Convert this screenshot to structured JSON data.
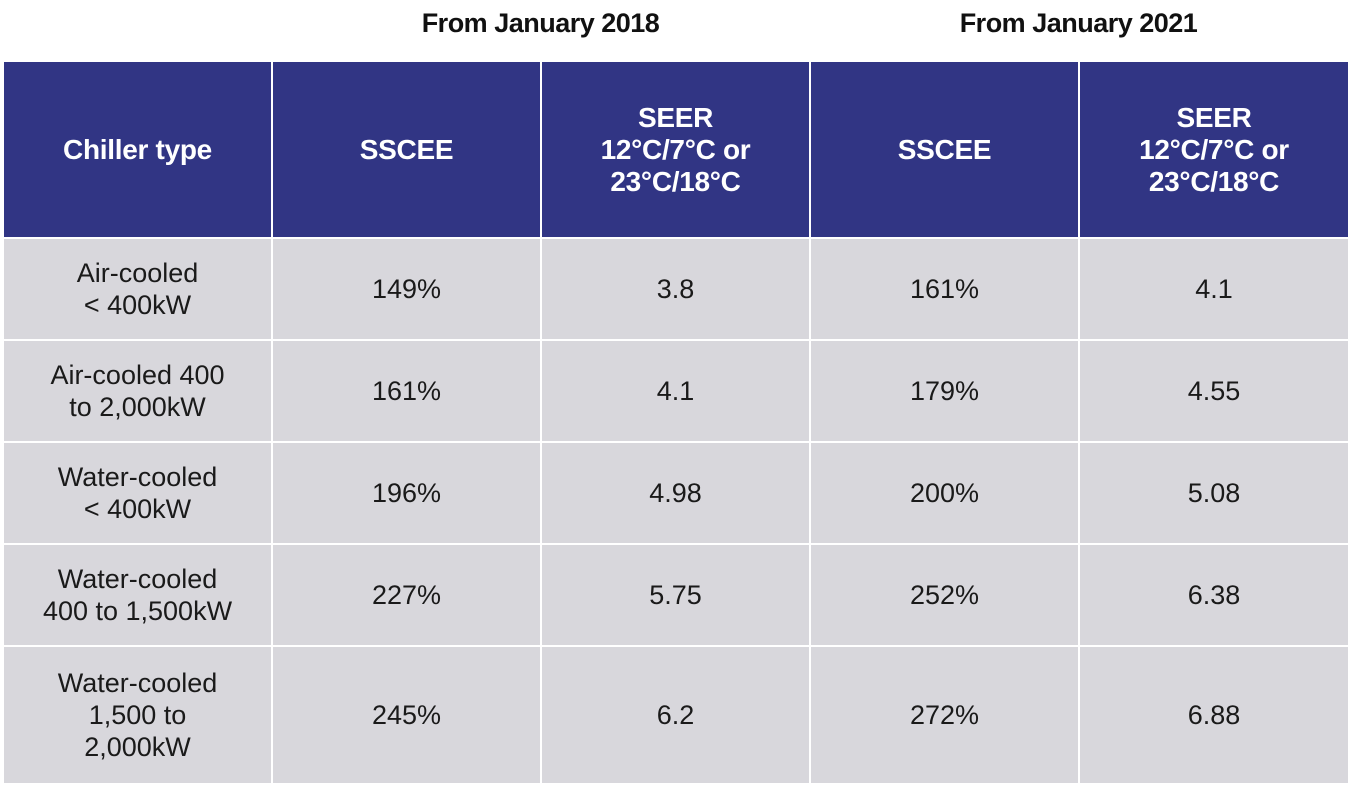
{
  "periods": [
    "From January 2018",
    "From January 2021"
  ],
  "headers": {
    "chiller_type": "Chiller type",
    "sscee": "SSCEE",
    "seer": [
      "SEER",
      "12°C/7°C or",
      "23°C/18°C"
    ]
  },
  "rows": [
    {
      "type": [
        "Air-cooled",
        "< 400kW"
      ],
      "sscee_2018": "149%",
      "seer_2018": "3.8",
      "sscee_2021": "161%",
      "seer_2021": "4.1"
    },
    {
      "type": [
        "Air-cooled 400",
        "to 2,000kW"
      ],
      "sscee_2018": "161%",
      "seer_2018": "4.1",
      "sscee_2021": "179%",
      "seer_2021": "4.55"
    },
    {
      "type": [
        "Water-cooled",
        "< 400kW"
      ],
      "sscee_2018": "196%",
      "seer_2018": "4.98",
      "sscee_2021": "200%",
      "seer_2021": "5.08"
    },
    {
      "type": [
        "Water-cooled",
        "400 to 1,500kW"
      ],
      "sscee_2018": "227%",
      "seer_2018": "5.75",
      "sscee_2021": "252%",
      "seer_2021": "6.38"
    },
    {
      "type": [
        "Water-cooled",
        "1,500 to",
        "2,000kW"
      ],
      "sscee_2018": "245%",
      "seer_2018": "6.2",
      "sscee_2021": "272%",
      "seer_2021": "6.88"
    }
  ],
  "colors": {
    "header_bg": "#313584",
    "header_text": "#ffffff",
    "cell_bg": "#d8d7dc",
    "cell_text": "#1a1a1a"
  }
}
